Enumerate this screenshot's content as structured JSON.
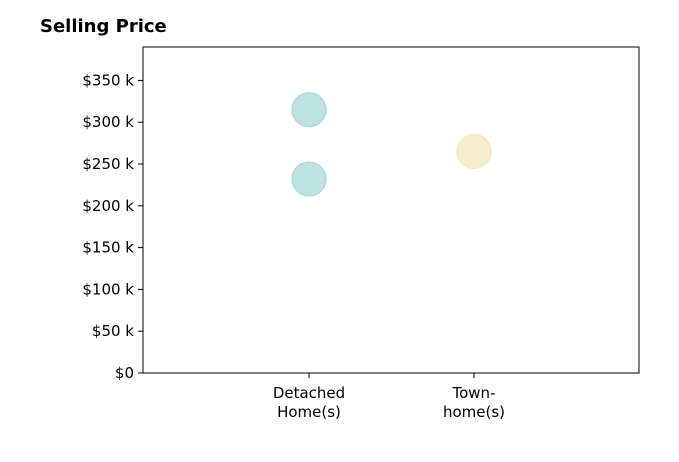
{
  "chart_data": {
    "type": "scatter",
    "title": "Selling Price",
    "xlabel": "",
    "ylabel": "",
    "categories": [
      [
        "Detached",
        "Home(s)"
      ],
      [
        "Town-",
        "home(s)"
      ]
    ],
    "ylim": [
      0,
      390000
    ],
    "yticks": [
      0,
      50000,
      100000,
      150000,
      200000,
      250000,
      300000,
      350000
    ],
    "ytick_labels": [
      "$0",
      "$50 k",
      "$100 k",
      "$150 k",
      "$200 k",
      "$250 k",
      "$300 k",
      "$350 k"
    ],
    "grid": false,
    "points": [
      {
        "category": 0,
        "value": 315000,
        "color": "#a8d8d4"
      },
      {
        "category": 0,
        "value": 232000,
        "color": "#a8d8d4"
      },
      {
        "category": 1,
        "value": 265000,
        "color": "#f6e6bf"
      }
    ]
  }
}
